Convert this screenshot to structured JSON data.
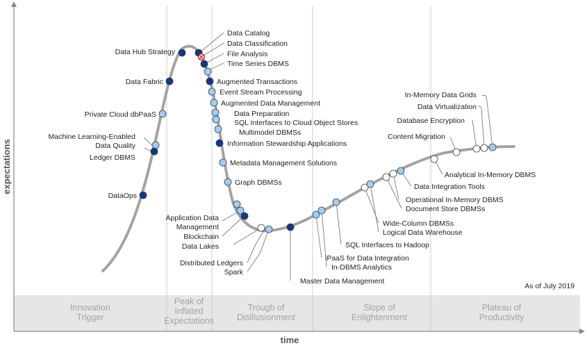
{
  "axes": {
    "x_label": "time",
    "y_label": "expectations"
  },
  "as_of": "As of July 2019",
  "phases": [
    {
      "id": "innovation-trigger",
      "lines": [
        "Innovation",
        "Trigger"
      ]
    },
    {
      "id": "peak",
      "lines": [
        "Peak of",
        "Inflated",
        "Expectations"
      ]
    },
    {
      "id": "trough",
      "lines": [
        "Trough of",
        "Disillusionment"
      ]
    },
    {
      "id": "slope",
      "lines": [
        "Slope of",
        "Enlightenment"
      ]
    },
    {
      "id": "plateau",
      "lines": [
        "Plateau of",
        "Productivity"
      ]
    }
  ],
  "legend": {
    "symbols": [
      {
        "kind": "white",
        "color": "#ffffff"
      },
      {
        "kind": "light",
        "color": "#9fcdf3"
      },
      {
        "kind": "dark",
        "color": "#0e3a86"
      },
      {
        "kind": "obsolete",
        "color": "#d9262c"
      }
    ]
  },
  "technologies": [
    {
      "id": "data-hub-strategy",
      "label": "Data Hub Strategy",
      "kind": "dark"
    },
    {
      "id": "data-fabric",
      "label": "Data Fabric",
      "kind": "dark"
    },
    {
      "id": "private-cloud-dbpaas",
      "label": "Private Cloud dbPaaS",
      "kind": "light"
    },
    {
      "id": "ml-data-quality",
      "label": [
        "Machine Learning-Enabled",
        "Data Quality"
      ],
      "kind": "light"
    },
    {
      "id": "ledger-dbms",
      "label": "Ledger DBMS",
      "kind": "dark"
    },
    {
      "id": "dataops",
      "label": "DataOps",
      "kind": "dark"
    },
    {
      "id": "data-catalog",
      "label": "Data Catalog",
      "kind": "dark"
    },
    {
      "id": "data-classification",
      "label": "Data Classification",
      "kind": "obsolete"
    },
    {
      "id": "file-analysis",
      "label": "File Analysis",
      "kind": "dark"
    },
    {
      "id": "time-series-dbms",
      "label": "Time Series DBMS",
      "kind": "light"
    },
    {
      "id": "augmented-transactions",
      "label": "Augmented Transactions",
      "kind": "dark"
    },
    {
      "id": "event-stream-processing",
      "label": "Event Stream Processing",
      "kind": "light"
    },
    {
      "id": "augmented-data-management",
      "label": "Augmented Data Management",
      "kind": "light"
    },
    {
      "id": "data-preparation",
      "label": "Data Preparation",
      "kind": "light"
    },
    {
      "id": "sql-cloud-object-stores",
      "label": "SQL Interfaces to Cloud Object Stores",
      "kind": "light"
    },
    {
      "id": "multimodel-dbmss",
      "label": "Multimodel DBMSs",
      "kind": "light"
    },
    {
      "id": "information-stewardship",
      "label": "Information Stewardship Applications",
      "kind": "dark"
    },
    {
      "id": "metadata-management",
      "label": "Metadata Management Solutions",
      "kind": "light"
    },
    {
      "id": "graph-dbmss",
      "label": "Graph DBMSs",
      "kind": "light"
    },
    {
      "id": "application-data-management",
      "label": [
        "Application Data",
        "Management"
      ],
      "kind": "light"
    },
    {
      "id": "blockchain",
      "label": "Blockchain",
      "kind": "light"
    },
    {
      "id": "data-lakes",
      "label": "Data Lakes",
      "kind": "dark"
    },
    {
      "id": "distributed-ledgers",
      "label": "Distributed Ledgers",
      "kind": "white"
    },
    {
      "id": "spark",
      "label": "Spark",
      "kind": "light"
    },
    {
      "id": "master-data-management",
      "label": "Master Data Management",
      "kind": "dark"
    },
    {
      "id": "ipaas",
      "label": "iPaaS for Data Integration",
      "kind": "light"
    },
    {
      "id": "in-dbms-analytics",
      "label": "In-DBMS Analytics",
      "kind": "light"
    },
    {
      "id": "sql-hadoop",
      "label": "SQL Interfaces to Hadoop",
      "kind": "light"
    },
    {
      "id": "wide-column-dbmss",
      "label": "Wide-Column DBMSs",
      "kind": "white"
    },
    {
      "id": "logical-data-warehouse",
      "label": "Logical Data Warehouse",
      "kind": "light"
    },
    {
      "id": "document-store-dbmss",
      "label": "Document Store DBMSs",
      "kind": "white"
    },
    {
      "id": "operational-in-memory",
      "label": "Operational In-Memory DBMS",
      "kind": "white"
    },
    {
      "id": "data-integration-tools",
      "label": "Data Integration Tools",
      "kind": "light"
    },
    {
      "id": "analytical-in-memory",
      "label": "Analytical In-Memory DBMS",
      "kind": "white"
    },
    {
      "id": "content-migration",
      "label": "Content Migration",
      "kind": "white"
    },
    {
      "id": "database-encryption",
      "label": "Database Encryption",
      "kind": "white"
    },
    {
      "id": "data-virtualization",
      "label": "Data Virtualization",
      "kind": "white"
    },
    {
      "id": "in-memory-data-grids",
      "label": "In-Memory Data Grids",
      "kind": "light"
    }
  ]
}
